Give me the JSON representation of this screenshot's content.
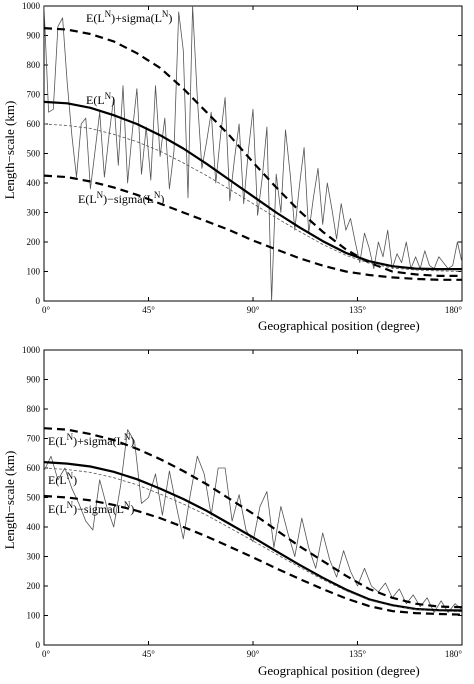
{
  "chart_data": [
    {
      "type": "line",
      "xlabel": "Geographical position (degree)",
      "ylabel": "Length−scale (km)",
      "xlim": [
        0,
        180
      ],
      "ylim": [
        0,
        1000
      ],
      "xticks": [
        0,
        45,
        90,
        135,
        180
      ],
      "xtick_labels": [
        "0°",
        "45°",
        "90°",
        "135°",
        "180°"
      ],
      "yticks": [
        0,
        100,
        200,
        300,
        400,
        500,
        600,
        700,
        800,
        900,
        1000
      ],
      "annotations": [
        "E(L",
        "N",
        ")+sigma(L",
        "N",
        ")",
        "E(L",
        "N",
        ")",
        "E(L",
        "N",
        ")−sigma(L",
        "N",
        ")"
      ],
      "series": [
        {
          "style": "thin-solid",
          "x": [
            0,
            2,
            4,
            6,
            8,
            10,
            12,
            14,
            16,
            18,
            20,
            22,
            24,
            26,
            28,
            30,
            32,
            34,
            36,
            38,
            40,
            42,
            44,
            46,
            48,
            50,
            52,
            54,
            56,
            58,
            60,
            62,
            64,
            66,
            68,
            70,
            72,
            74,
            76,
            78,
            80,
            82,
            84,
            86,
            88,
            90,
            92,
            94,
            96,
            98,
            100,
            102,
            104,
            106,
            108,
            110,
            112,
            114,
            116,
            118,
            120,
            122,
            124,
            126,
            128,
            130,
            132,
            134,
            136,
            138,
            140,
            142,
            144,
            146,
            148,
            150,
            152,
            154,
            156,
            158,
            160,
            162,
            164,
            166,
            168,
            170,
            172,
            174,
            176,
            178,
            180
          ],
          "y": [
            1000,
            640,
            650,
            930,
            960,
            740,
            560,
            420,
            600,
            620,
            380,
            510,
            640,
            420,
            560,
            690,
            460,
            730,
            400,
            570,
            720,
            430,
            590,
            410,
            730,
            490,
            620,
            380,
            510,
            980,
            850,
            350,
            1000,
            690,
            450,
            540,
            640,
            400,
            560,
            690,
            340,
            480,
            600,
            330,
            510,
            650,
            290,
            420,
            590,
            0,
            430,
            300,
            580,
            430,
            240,
            390,
            520,
            230,
            350,
            450,
            260,
            400,
            310,
            210,
            330,
            240,
            280,
            200,
            130,
            230,
            180,
            110,
            200,
            150,
            240,
            110,
            160,
            130,
            200,
            110,
            150,
            110,
            170,
            120,
            110,
            150,
            130,
            110,
            120,
            200,
            130
          ]
        },
        {
          "style": "thick-dashed",
          "x": [
            0,
            10,
            20,
            30,
            40,
            50,
            60,
            70,
            80,
            90,
            100,
            110,
            120,
            130,
            140,
            150,
            160,
            170,
            180
          ],
          "y": [
            925,
            920,
            905,
            880,
            840,
            790,
            720,
            640,
            560,
            470,
            385,
            305,
            235,
            175,
            130,
            100,
            90,
            85,
            85
          ]
        },
        {
          "style": "thick-solid",
          "x": [
            0,
            10,
            20,
            30,
            40,
            50,
            60,
            70,
            80,
            90,
            100,
            110,
            120,
            130,
            140,
            150,
            160,
            170,
            180
          ],
          "y": [
            675,
            670,
            655,
            630,
            600,
            562,
            517,
            465,
            410,
            355,
            300,
            250,
            203,
            163,
            135,
            118,
            110,
            108,
            108
          ]
        },
        {
          "style": "thin-dashed",
          "x": [
            0,
            10,
            20,
            30,
            40,
            50,
            60,
            70,
            80,
            90,
            100,
            110,
            120,
            130,
            140,
            150,
            160,
            170,
            180
          ],
          "y": [
            600,
            595,
            585,
            565,
            540,
            508,
            468,
            425,
            378,
            330,
            282,
            236,
            192,
            155,
            128,
            112,
            105,
            102,
            100
          ]
        },
        {
          "style": "thick-dashed",
          "x": [
            0,
            10,
            20,
            30,
            40,
            50,
            60,
            70,
            80,
            90,
            100,
            110,
            120,
            130,
            140,
            150,
            160,
            170,
            180
          ],
          "y": [
            425,
            420,
            405,
            385,
            360,
            330,
            300,
            270,
            240,
            205,
            175,
            145,
            120,
            100,
            88,
            80,
            75,
            72,
            72
          ]
        }
      ]
    },
    {
      "type": "line",
      "xlabel": "Geographical position (degree)",
      "ylabel": "Length−scale (km)",
      "xlim": [
        0,
        180
      ],
      "ylim": [
        0,
        1000
      ],
      "xticks": [
        0,
        45,
        90,
        135,
        180
      ],
      "xtick_labels": [
        "0°",
        "45°",
        "90°",
        "135°",
        "180°"
      ],
      "yticks": [
        0,
        100,
        200,
        300,
        400,
        500,
        600,
        700,
        800,
        900,
        1000
      ],
      "annotations": [
        "E(L",
        "N",
        ")+sigma(L",
        "N",
        ")",
        "E(L",
        "N",
        ")",
        "E(L",
        "N",
        ")−sigma(L",
        "N",
        ")"
      ],
      "series": [
        {
          "style": "thin-solid",
          "x": [
            0,
            3,
            6,
            9,
            12,
            15,
            18,
            21,
            24,
            27,
            30,
            33,
            36,
            39,
            42,
            45,
            48,
            51,
            54,
            57,
            60,
            63,
            66,
            69,
            72,
            75,
            78,
            81,
            84,
            87,
            90,
            93,
            96,
            99,
            102,
            105,
            108,
            111,
            114,
            117,
            120,
            123,
            126,
            129,
            132,
            135,
            138,
            141,
            144,
            147,
            150,
            153,
            156,
            159,
            162,
            165,
            168,
            171,
            174,
            177,
            180
          ],
          "y": [
            590,
            640,
            560,
            600,
            530,
            480,
            420,
            390,
            560,
            470,
            400,
            540,
            730,
            690,
            480,
            500,
            580,
            440,
            590,
            470,
            360,
            510,
            640,
            580,
            440,
            600,
            600,
            420,
            510,
            390,
            350,
            470,
            520,
            330,
            470,
            380,
            300,
            430,
            330,
            260,
            380,
            290,
            230,
            320,
            250,
            200,
            260,
            200,
            180,
            210,
            160,
            190,
            140,
            170,
            130,
            160,
            110,
            150,
            110,
            140,
            120
          ]
        },
        {
          "style": "thick-dashed",
          "x": [
            0,
            10,
            20,
            30,
            40,
            50,
            60,
            70,
            80,
            90,
            100,
            110,
            120,
            130,
            140,
            150,
            160,
            170,
            180
          ],
          "y": [
            735,
            730,
            715,
            695,
            665,
            630,
            590,
            545,
            495,
            445,
            390,
            335,
            285,
            235,
            190,
            160,
            140,
            130,
            128
          ]
        },
        {
          "style": "thick-solid",
          "x": [
            0,
            10,
            20,
            30,
            40,
            50,
            60,
            70,
            80,
            90,
            100,
            110,
            120,
            130,
            140,
            150,
            160,
            170,
            180
          ],
          "y": [
            620,
            615,
            605,
            587,
            562,
            530,
            495,
            455,
            410,
            365,
            318,
            272,
            228,
            188,
            155,
            135,
            122,
            118,
            117
          ]
        },
        {
          "style": "thin-dashed",
          "x": [
            0,
            10,
            20,
            30,
            40,
            50,
            60,
            70,
            80,
            90,
            100,
            110,
            120,
            130,
            140,
            150,
            160,
            170,
            180
          ],
          "y": [
            600,
            595,
            585,
            567,
            543,
            512,
            478,
            440,
            397,
            353,
            308,
            264,
            222,
            184,
            152,
            132,
            120,
            115,
            113
          ]
        },
        {
          "style": "thick-dashed",
          "x": [
            0,
            10,
            20,
            30,
            40,
            50,
            60,
            70,
            80,
            90,
            100,
            110,
            120,
            130,
            140,
            150,
            160,
            170,
            180
          ],
          "y": [
            505,
            500,
            490,
            475,
            455,
            430,
            400,
            368,
            333,
            297,
            260,
            224,
            190,
            158,
            132,
            115,
            108,
            105,
            103
          ]
        }
      ]
    }
  ]
}
